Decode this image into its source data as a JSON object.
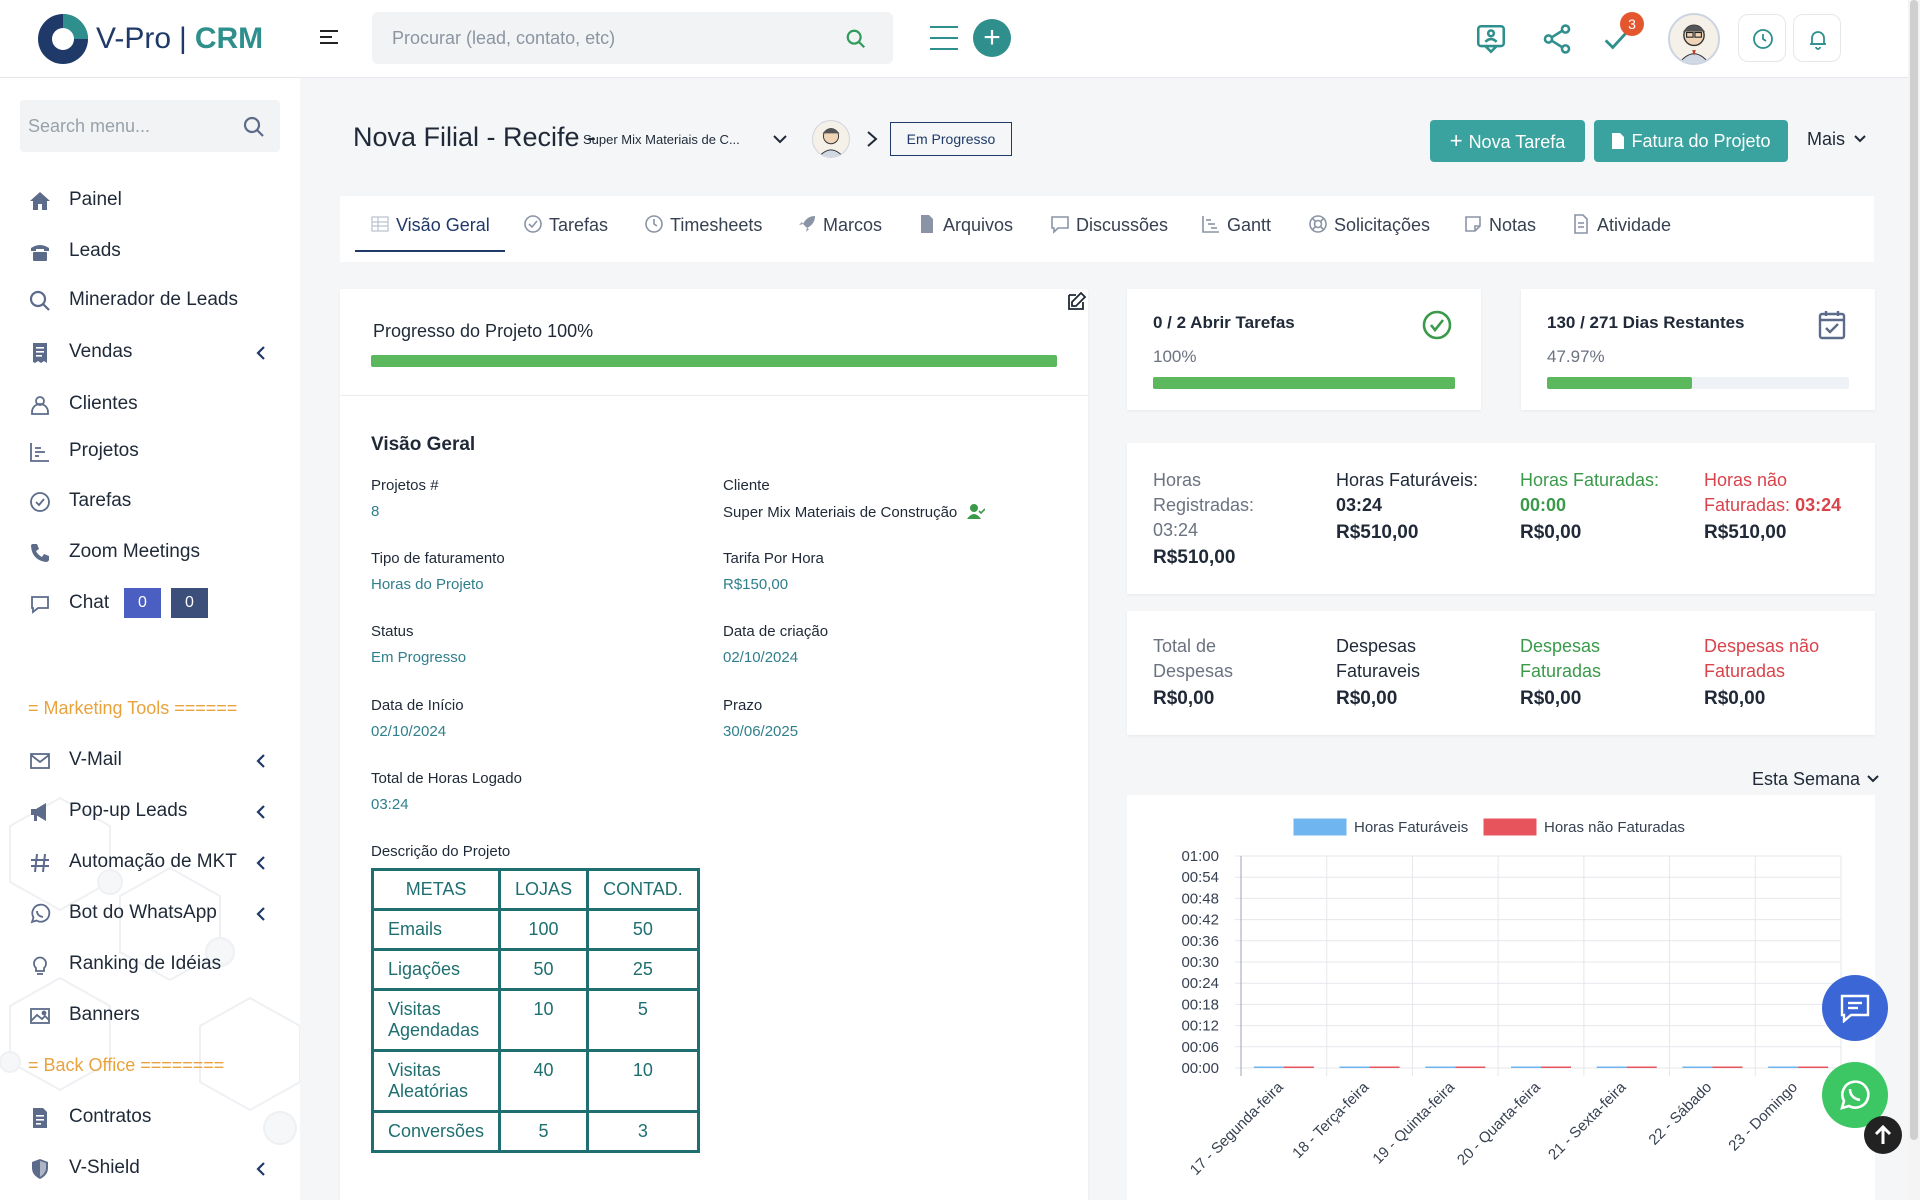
{
  "brand": {
    "name_left": "V-Pro",
    "separator": "|",
    "name_right": "CRM"
  },
  "search": {
    "placeholder": "Procurar (lead, contato, etc)"
  },
  "topbar": {
    "notification_count": "3"
  },
  "sidebar": {
    "search_placeholder": "Search menu...",
    "items": [
      {
        "label": "Painel",
        "icon": "home-icon"
      },
      {
        "label": "Leads",
        "icon": "phone-desk-icon"
      },
      {
        "label": "Minerador de Leads",
        "icon": "search-icon"
      },
      {
        "label": "Vendas",
        "icon": "receipt-icon"
      },
      {
        "label": "Clientes",
        "icon": "user-icon"
      },
      {
        "label": "Projetos",
        "icon": "chart-icon"
      },
      {
        "label": "Tarefas",
        "icon": "check-circle-icon"
      },
      {
        "label": "Zoom Meetings",
        "icon": "phone-icon"
      },
      {
        "label": "Chat",
        "icon": "chat-icon",
        "chips": [
          "0",
          "0"
        ]
      }
    ],
    "section_marketing": "= Marketing Tools ======",
    "marketing_items": [
      {
        "label": "V-Mail",
        "icon": "mail-icon"
      },
      {
        "label": "Pop-up Leads",
        "icon": "megaphone-icon"
      },
      {
        "label": "Automação de MKT",
        "icon": "hash-icon"
      },
      {
        "label": "Bot do WhatsApp",
        "icon": "whatsapp-icon"
      },
      {
        "label": "Ranking de Idéias",
        "icon": "bulb-icon"
      },
      {
        "label": "Banners",
        "icon": "image-icon"
      }
    ],
    "section_backoffice": "= Back Office ========",
    "backoffice_items": [
      {
        "label": "Contratos",
        "icon": "contract-icon"
      },
      {
        "label": "V-Shield",
        "icon": "shield-icon"
      }
    ]
  },
  "project": {
    "title": "Nova Filial - Recife -",
    "client_short": "Super Mix Materiais de C...",
    "status": "Em Progresso",
    "btn_new_task": "Nova Tarefa",
    "btn_invoice": "Fatura do Projeto",
    "btn_more": "Mais"
  },
  "tabs": [
    "Visão Geral",
    "Tarefas",
    "Timesheets",
    "Marcos",
    "Arquivos",
    "Discussões",
    "Gantt",
    "Solicitações",
    "Notas",
    "Atividade"
  ],
  "progress": {
    "label": "Progresso do Projeto 100%",
    "percent": 100
  },
  "overview": {
    "heading": "Visão Geral",
    "fields": [
      {
        "label": "Projetos #",
        "value": "8"
      },
      {
        "label": "Cliente",
        "value": "Super Mix Materiais de Construção"
      },
      {
        "label": "Tipo de faturamento",
        "value": "Horas do Projeto"
      },
      {
        "label": "Tarifa Por Hora",
        "value": "R$150,00"
      },
      {
        "label": "Status",
        "value": "Em Progresso"
      },
      {
        "label": "Data de criação",
        "value": "02/10/2024"
      },
      {
        "label": "Data de Início",
        "value": "02/10/2024"
      },
      {
        "label": "Prazo",
        "value": "30/06/2025"
      },
      {
        "label": "Total de Horas Logado",
        "value": "03:24"
      }
    ],
    "description_label": "Descrição do Projeto",
    "table": {
      "headers": [
        "METAS",
        "LOJAS",
        "CONTAD."
      ],
      "rows": [
        [
          "Emails",
          "100",
          "50"
        ],
        [
          "Ligações",
          "50",
          "25"
        ],
        [
          "Visitas Agendadas",
          "10",
          "5"
        ],
        [
          "Visitas Aleatórias",
          "40",
          "10"
        ],
        [
          "Conversões",
          "5",
          "3"
        ]
      ]
    }
  },
  "tasks_card": {
    "title": "0 / 2 Abrir Tarefas",
    "percent_label": "100%",
    "percent": 100
  },
  "days_card": {
    "title": "130 / 271 Dias Restantes",
    "percent_label": "47.97%",
    "percent": 47.97
  },
  "hours": [
    {
      "label": "Horas Registradas:",
      "value": "03:24",
      "money": "R$510,00"
    },
    {
      "label": "Horas Faturáveis:",
      "value": "03:24",
      "money": "R$510,00"
    },
    {
      "label": "Horas Faturadas:",
      "value": "00:00",
      "money": "R$0,00"
    },
    {
      "label": "Horas não Faturadas:",
      "value": "03:24",
      "money": "R$510,00"
    }
  ],
  "expenses": [
    {
      "label": "Total de Despesas",
      "money": "R$0,00"
    },
    {
      "label": "Despesas Faturaveis",
      "money": "R$0,00"
    },
    {
      "label": "Despesas Faturadas",
      "money": "R$0,00"
    },
    {
      "label": "Despesas não Faturadas",
      "money": "R$0,00"
    }
  ],
  "period_select": "Esta Semana",
  "chart_data": {
    "type": "bar",
    "categories": [
      "17 - Segunda-feira",
      "18 - Terça-feira",
      "19 - Quinta-feira",
      "20 - Quarta-feira",
      "21 - Sexta-feira",
      "22 - Sábado",
      "23 - Domingo"
    ],
    "series": [
      {
        "name": "Horas Faturáveis",
        "values": [
          0,
          0,
          0,
          0,
          0,
          0,
          0
        ],
        "color": "#6fb6f0"
      },
      {
        "name": "Horas não Faturadas",
        "values": [
          0,
          0,
          0,
          0,
          0,
          0,
          0
        ],
        "color": "#e8545c"
      }
    ],
    "y_ticks": [
      "00:00",
      "00:06",
      "00:12",
      "00:18",
      "00:24",
      "00:30",
      "00:36",
      "00:42",
      "00:48",
      "00:54",
      "01:00"
    ],
    "ylim": [
      0,
      60
    ],
    "legend": "top"
  },
  "colors": {
    "accent": "#2f8f8c",
    "brand": "#1f3a68",
    "success": "#5cb85c",
    "danger": "#d9434b"
  }
}
